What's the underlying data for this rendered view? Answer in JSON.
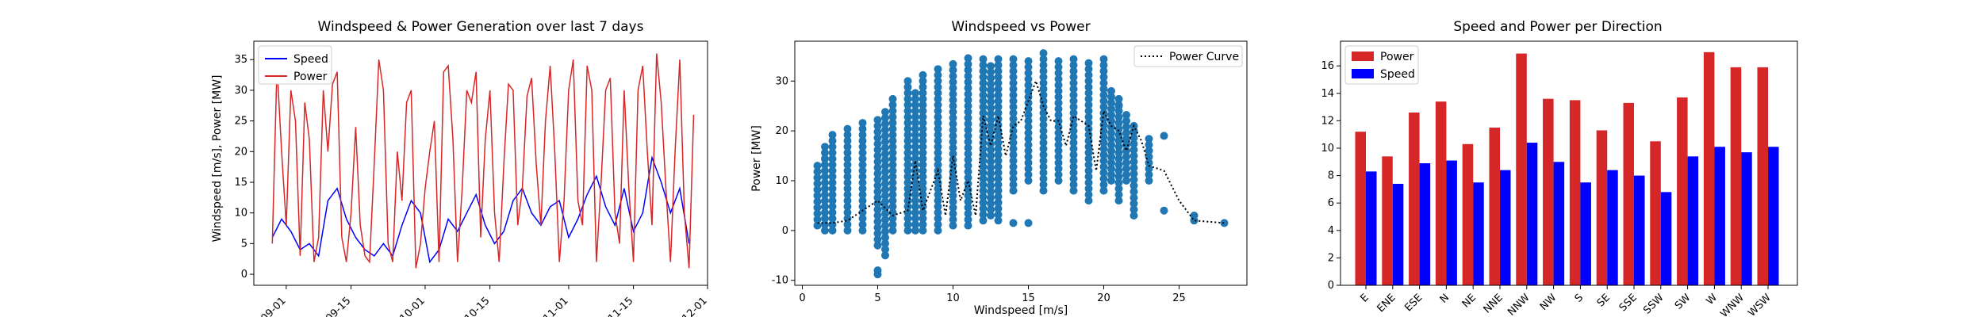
{
  "chart_data": [
    {
      "type": "line",
      "title": "Windspeed & Power Generation over last 7 days",
      "xlabel": "",
      "ylabel": "Windspeed [m/s], Power [MW]",
      "xlim": [
        "2024-08-25",
        "2024-12-01"
      ],
      "ylim": [
        -1.8,
        38
      ],
      "xticks": [
        "09-01",
        "09-15",
        "10-01",
        "10-15",
        "11-01",
        "11-15",
        "12-01"
      ],
      "xtick_dates": [
        "2024-09-01",
        "2024-09-15",
        "2024-10-01",
        "2024-10-15",
        "2024-11-01",
        "2024-11-15",
        "2024-12-01"
      ],
      "yticks": [
        0,
        5,
        10,
        15,
        20,
        25,
        30,
        35
      ],
      "legend": "top-left",
      "colors": {
        "Speed": "#0000ff",
        "Power": "#d62728"
      },
      "series": [
        {
          "name": "Speed",
          "x": [
            "2024-08-29",
            "2024-08-31",
            "2024-09-02",
            "2024-09-04",
            "2024-09-06",
            "2024-09-08",
            "2024-09-10",
            "2024-09-12",
            "2024-09-14",
            "2024-09-16",
            "2024-09-18",
            "2024-09-20",
            "2024-09-22",
            "2024-09-24",
            "2024-09-26",
            "2024-09-28",
            "2024-09-30",
            "2024-10-02",
            "2024-10-04",
            "2024-10-06",
            "2024-10-08",
            "2024-10-10",
            "2024-10-12",
            "2024-10-14",
            "2024-10-16",
            "2024-10-18",
            "2024-10-20",
            "2024-10-22",
            "2024-10-24",
            "2024-10-26",
            "2024-10-28",
            "2024-10-30",
            "2024-11-01",
            "2024-11-03",
            "2024-11-05",
            "2024-11-07",
            "2024-11-09",
            "2024-11-11",
            "2024-11-13",
            "2024-11-15",
            "2024-11-17",
            "2024-11-19",
            "2024-11-21",
            "2024-11-23",
            "2024-11-25",
            "2024-11-27"
          ],
          "values": [
            6,
            9,
            7,
            4,
            5,
            3,
            12,
            14,
            9,
            6,
            4,
            3,
            5,
            3,
            8,
            12,
            10,
            2,
            4,
            9,
            7,
            10,
            13,
            8,
            5,
            7,
            12,
            14,
            10,
            8,
            11,
            12,
            6,
            9,
            13,
            16,
            11,
            8,
            14,
            7,
            10,
            19,
            15,
            10,
            14,
            5
          ]
        },
        {
          "name": "Power",
          "x": [
            "2024-08-29",
            "2024-08-30",
            "2024-08-31",
            "2024-09-01",
            "2024-09-02",
            "2024-09-03",
            "2024-09-04",
            "2024-09-05",
            "2024-09-06",
            "2024-09-07",
            "2024-09-08",
            "2024-09-09",
            "2024-09-10",
            "2024-09-11",
            "2024-09-12",
            "2024-09-13",
            "2024-09-14",
            "2024-09-15",
            "2024-09-16",
            "2024-09-17",
            "2024-09-18",
            "2024-09-19",
            "2024-09-20",
            "2024-09-21",
            "2024-09-22",
            "2024-09-23",
            "2024-09-24",
            "2024-09-25",
            "2024-09-26",
            "2024-09-27",
            "2024-09-28",
            "2024-09-29",
            "2024-09-30",
            "2024-10-01",
            "2024-10-02",
            "2024-10-03",
            "2024-10-04",
            "2024-10-05",
            "2024-10-06",
            "2024-10-07",
            "2024-10-08",
            "2024-10-09",
            "2024-10-10",
            "2024-10-11",
            "2024-10-12",
            "2024-10-13",
            "2024-10-14",
            "2024-10-15",
            "2024-10-16",
            "2024-10-17",
            "2024-10-18",
            "2024-10-19",
            "2024-10-20",
            "2024-10-21",
            "2024-10-22",
            "2024-10-23",
            "2024-10-24",
            "2024-10-25",
            "2024-10-26",
            "2024-10-27",
            "2024-10-28",
            "2024-10-29",
            "2024-10-30",
            "2024-10-31",
            "2024-11-01",
            "2024-11-02",
            "2024-11-03",
            "2024-11-04",
            "2024-11-05",
            "2024-11-06",
            "2024-11-07",
            "2024-11-08",
            "2024-11-09",
            "2024-11-10",
            "2024-11-11",
            "2024-11-12",
            "2024-11-13",
            "2024-11-14",
            "2024-11-15",
            "2024-11-16",
            "2024-11-17",
            "2024-11-18",
            "2024-11-19",
            "2024-11-20",
            "2024-11-21",
            "2024-11-22",
            "2024-11-23",
            "2024-11-24",
            "2024-11-25",
            "2024-11-26",
            "2024-11-27",
            "2024-11-28"
          ],
          "values": [
            5,
            34,
            20,
            8,
            30,
            25,
            3,
            28,
            22,
            2,
            6,
            30,
            20,
            31,
            33,
            6,
            2,
            10,
            24,
            8,
            3,
            2,
            18,
            35,
            30,
            5,
            2,
            20,
            12,
            28,
            30,
            1,
            5,
            14,
            20,
            25,
            2,
            33,
            34,
            22,
            2,
            14,
            30,
            28,
            33,
            6,
            22,
            30,
            10,
            2,
            18,
            31,
            30,
            8,
            14,
            29,
            32,
            18,
            8,
            25,
            34,
            20,
            2,
            12,
            30,
            35,
            12,
            8,
            34,
            30,
            2,
            15,
            30,
            32,
            10,
            5,
            30,
            14,
            2,
            30,
            34,
            20,
            8,
            36,
            28,
            14,
            2,
            20,
            35,
            10,
            1,
            26
          ]
        }
      ]
    },
    {
      "type": "scatter",
      "title": "Windspeed vs Power",
      "xlabel": "Windspeed [m/s]",
      "ylabel": "Power [MW]",
      "xlim": [
        -0.5,
        29.5
      ],
      "ylim": [
        -11,
        38
      ],
      "xticks": [
        0,
        5,
        10,
        15,
        20,
        25
      ],
      "yticks": [
        -10,
        0,
        10,
        20,
        30
      ],
      "legend": "top-right",
      "colors": {
        "points": "#1f77b4",
        "Power Curve": "#000000"
      },
      "series": [
        {
          "name": "Power Curve",
          "x": [
            1,
            2,
            3,
            4,
            5,
            6,
            7,
            7.5,
            8,
            8.5,
            9,
            9.5,
            10,
            10.5,
            11,
            11.5,
            12,
            12.5,
            13,
            13.5,
            14,
            14.5,
            15,
            15.5,
            16,
            16.5,
            17,
            17.5,
            18,
            18.5,
            19,
            19.5,
            20,
            20.5,
            21,
            21.5,
            22,
            22.5,
            23,
            24,
            25,
            26,
            28
          ],
          "values": [
            1.5,
            1.5,
            2,
            4,
            6,
            3,
            4,
            14,
            4,
            8,
            12,
            3,
            15,
            6,
            10,
            3,
            23,
            17,
            23,
            15,
            21,
            22,
            26,
            30,
            25,
            22,
            22,
            17,
            23,
            22,
            21,
            12,
            24,
            21,
            20,
            16,
            21,
            18,
            13,
            12,
            6,
            2,
            1.5
          ]
        }
      ],
      "scatter_columns": [
        {
          "x": 1,
          "ymin": 1,
          "ymax": 14
        },
        {
          "x": 1.5,
          "ymin": 0,
          "ymax": 17
        },
        {
          "x": 2,
          "ymin": 0,
          "ymax": 20
        },
        {
          "x": 3,
          "ymin": 0,
          "ymax": 21
        },
        {
          "x": 4,
          "ymin": 0,
          "ymax": 22
        },
        {
          "x": 5,
          "ymin": -3,
          "ymax": 23
        },
        {
          "x": 5.5,
          "ymin": -5,
          "ymax": 24
        },
        {
          "x": 6,
          "ymin": 0,
          "ymax": 27
        },
        {
          "x": 7,
          "ymin": 0,
          "ymax": 31
        },
        {
          "x": 7.5,
          "ymin": 0,
          "ymax": 28
        },
        {
          "x": 8,
          "ymin": 0,
          "ymax": 32
        },
        {
          "x": 9,
          "ymin": 0,
          "ymax": 33
        },
        {
          "x": 10,
          "ymin": 1,
          "ymax": 34
        },
        {
          "x": 11,
          "ymin": 1,
          "ymax": 35
        },
        {
          "x": 12,
          "ymin": 2,
          "ymax": 35
        },
        {
          "x": 12.5,
          "ymin": 3,
          "ymax": 34
        },
        {
          "x": 13,
          "ymin": 2,
          "ymax": 35
        },
        {
          "x": 14,
          "ymin": 8,
          "ymax": 35
        },
        {
          "x": 15,
          "ymin": 10,
          "ymax": 35
        },
        {
          "x": 16,
          "ymin": 8,
          "ymax": 36
        },
        {
          "x": 17,
          "ymin": 10,
          "ymax": 34
        },
        {
          "x": 18,
          "ymin": 8,
          "ymax": 35
        },
        {
          "x": 19,
          "ymin": 6,
          "ymax": 34
        },
        {
          "x": 20,
          "ymin": 8,
          "ymax": 35
        },
        {
          "x": 20.5,
          "ymin": 10,
          "ymax": 28
        },
        {
          "x": 21,
          "ymin": 6,
          "ymax": 27
        },
        {
          "x": 21.5,
          "ymin": 10,
          "ymax": 24
        },
        {
          "x": 22,
          "ymin": 3,
          "ymax": 22
        },
        {
          "x": 23,
          "ymin": 10,
          "ymax": 19
        }
      ],
      "scatter_points": [
        {
          "x": 5,
          "y": -8
        },
        {
          "x": 5,
          "y": -8.8
        },
        {
          "x": 15,
          "y": 1.5
        },
        {
          "x": 14,
          "y": 1.5
        },
        {
          "x": 22,
          "y": 20
        },
        {
          "x": 24,
          "y": 19
        },
        {
          "x": 24,
          "y": 4
        },
        {
          "x": 26,
          "y": 3
        },
        {
          "x": 26,
          "y": 2
        },
        {
          "x": 28,
          "y": 1.5
        },
        {
          "x": 21,
          "y": 25
        },
        {
          "x": 23,
          "y": 16
        }
      ]
    },
    {
      "type": "bar",
      "title": "Speed and Power per Direction",
      "xlabel": "",
      "ylabel": "",
      "ylim": [
        0,
        17.8
      ],
      "yticks": [
        0,
        2,
        4,
        6,
        8,
        10,
        12,
        14,
        16
      ],
      "legend": "top-left",
      "categories": [
        "E",
        "ENE",
        "ESE",
        "N",
        "NE",
        "NNE",
        "NNW",
        "NW",
        "S",
        "SE",
        "SSE",
        "SSW",
        "SW",
        "W",
        "WNW",
        "WSW"
      ],
      "colors": {
        "Power": "#d62728",
        "Speed": "#0000ff"
      },
      "series": [
        {
          "name": "Power",
          "values": [
            11.2,
            9.4,
            12.6,
            13.4,
            10.3,
            11.5,
            16.9,
            13.6,
            13.5,
            11.3,
            13.3,
            10.5,
            13.7,
            17.0,
            15.9,
            15.9
          ]
        },
        {
          "name": "Speed",
          "values": [
            8.3,
            7.4,
            8.9,
            9.1,
            7.5,
            8.4,
            10.4,
            9.0,
            7.5,
            8.4,
            8.0,
            6.8,
            9.4,
            10.1,
            9.7,
            10.1
          ]
        }
      ]
    }
  ]
}
